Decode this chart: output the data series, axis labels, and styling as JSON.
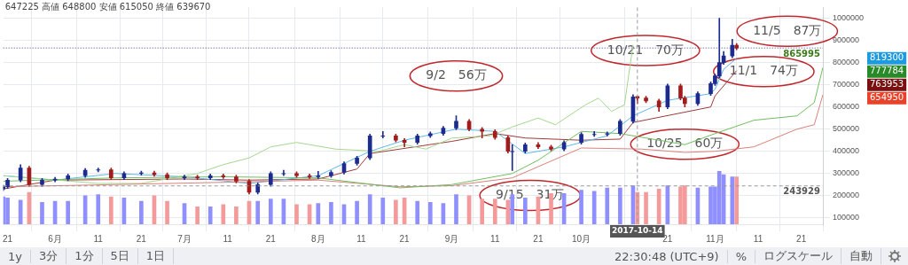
{
  "chart_data": {
    "type": "candlestick",
    "x": [
      "2017-05-20",
      "2017-05-21",
      "2017-05-24",
      "2017-05-26",
      "2017-05-29",
      "2017-06-01",
      "2017-06-04",
      "2017-06-08",
      "2017-06-11",
      "2017-06-14",
      "2017-06-17",
      "2017-06-21",
      "2017-06-24",
      "2017-06-27",
      "2017-07-01",
      "2017-07-04",
      "2017-07-07",
      "2017-07-10",
      "2017-07-13",
      "2017-07-16",
      "2017-07-18",
      "2017-07-21",
      "2017-07-24",
      "2017-07-27",
      "2017-07-30",
      "2017-08-01",
      "2017-08-04",
      "2017-08-07",
      "2017-08-10",
      "2017-08-13",
      "2017-08-16",
      "2017-08-19",
      "2017-08-21",
      "2017-08-24",
      "2017-08-27",
      "2017-08-30",
      "2017-09-02",
      "2017-09-05",
      "2017-09-08",
      "2017-09-11",
      "2017-09-14",
      "2017-09-15",
      "2017-09-18",
      "2017-09-21",
      "2017-09-24",
      "2017-09-27",
      "2017-10-01",
      "2017-10-04",
      "2017-10-07",
      "2017-10-10",
      "2017-10-13",
      "2017-10-14",
      "2017-10-16",
      "2017-10-19",
      "2017-10-21",
      "2017-10-24",
      "2017-10-25",
      "2017-10-28",
      "2017-10-31",
      "2017-11-01",
      "2017-11-02",
      "2017-11-03",
      "2017-11-05",
      "2017-11-06"
    ],
    "ohlc": [
      [
        230000,
        248000,
        222000,
        240000
      ],
      [
        240000,
        278000,
        232000,
        270000
      ],
      [
        270000,
        340000,
        262000,
        325000
      ],
      [
        325000,
        333000,
        242000,
        250000
      ],
      [
        250000,
        278000,
        242000,
        270000
      ],
      [
        270000,
        283000,
        262000,
        275000
      ],
      [
        275000,
        298000,
        267000,
        290000
      ],
      [
        290000,
        323000,
        282000,
        315000
      ],
      [
        315000,
        325000,
        307000,
        317000
      ],
      [
        317000,
        325000,
        272000,
        280000
      ],
      [
        280000,
        308000,
        272000,
        300000
      ],
      [
        300000,
        311000,
        292000,
        303000
      ],
      [
        303000,
        311000,
        287000,
        295000
      ],
      [
        295000,
        303000,
        272000,
        280000
      ],
      [
        280000,
        293000,
        272000,
        285000
      ],
      [
        285000,
        293000,
        272000,
        280000
      ],
      [
        280000,
        298000,
        272000,
        290000
      ],
      [
        290000,
        298000,
        277000,
        285000
      ],
      [
        285000,
        293000,
        257000,
        265000
      ],
      [
        265000,
        273000,
        207000,
        215000
      ],
      [
        215000,
        258000,
        207000,
        250000
      ],
      [
        250000,
        308000,
        242000,
        300000
      ],
      [
        298000,
        315000,
        290000,
        300000
      ],
      [
        300000,
        308000,
        282000,
        290000
      ],
      [
        290000,
        298000,
        277000,
        285000
      ],
      [
        285000,
        310000,
        277000,
        290000
      ],
      [
        290000,
        313000,
        282000,
        305000
      ],
      [
        305000,
        353000,
        297000,
        345000
      ],
      [
        345000,
        378000,
        337000,
        370000
      ],
      [
        370000,
        478000,
        362000,
        470000
      ],
      [
        468000,
        490000,
        460000,
        470000
      ],
      [
        470000,
        478000,
        442000,
        450000
      ],
      [
        450000,
        458000,
        420000,
        440000
      ],
      [
        440000,
        478000,
        432000,
        470000
      ],
      [
        470000,
        488000,
        462000,
        480000
      ],
      [
        480000,
        513000,
        472000,
        505000
      ],
      [
        505000,
        560000,
        497000,
        535000
      ],
      [
        535000,
        543000,
        492000,
        500000
      ],
      [
        500000,
        508000,
        460000,
        490000
      ],
      [
        490000,
        498000,
        454000,
        462000
      ],
      [
        462000,
        470000,
        392000,
        400000
      ],
      [
        398000,
        430000,
        313000,
        400000
      ],
      [
        400000,
        438000,
        392000,
        430000
      ],
      [
        430000,
        440000,
        412000,
        420000
      ],
      [
        420000,
        428000,
        402000,
        410000
      ],
      [
        410000,
        448000,
        402000,
        440000
      ],
      [
        440000,
        485000,
        432000,
        477000
      ],
      [
        475000,
        490000,
        467000,
        477000
      ],
      [
        477000,
        488000,
        469000,
        480000
      ],
      [
        480000,
        543000,
        472000,
        535000
      ],
      [
        535000,
        655000,
        527000,
        645000
      ],
      [
        647225,
        648800,
        615050,
        639670
      ],
      [
        640000,
        648000,
        619000,
        627000
      ],
      [
        627000,
        635000,
        580000,
        600000
      ],
      [
        600000,
        703000,
        592000,
        695000
      ],
      [
        695000,
        703000,
        632000,
        640000
      ],
      [
        640000,
        648000,
        600000,
        615000
      ],
      [
        615000,
        668000,
        607000,
        660000
      ],
      [
        660000,
        713000,
        652000,
        705000
      ],
      [
        705000,
        748000,
        697000,
        740000
      ],
      [
        740000,
        1000000,
        732000,
        800000
      ],
      [
        800000,
        850000,
        792000,
        830000
      ],
      [
        830000,
        905000,
        822000,
        878000
      ],
      [
        878000,
        886000,
        858000,
        865995
      ]
    ],
    "colors": [
      "#1c2b8f",
      "#1c2b8f",
      "#1c2b8f",
      "#a31c1c",
      "#1c2b8f",
      "#1c2b8f",
      "#1c2b8f",
      "#1c2b8f",
      "#1c2b8f",
      "#a31c1c",
      "#1c2b8f",
      "#1c2b8f",
      "#a31c1c",
      "#a31c1c",
      "#1c2b8f",
      "#a31c1c",
      "#1c2b8f",
      "#a31c1c",
      "#a31c1c",
      "#a31c1c",
      "#1c2b8f",
      "#1c2b8f",
      "#1c2b8f",
      "#a31c1c",
      "#a31c1c",
      "#1c2b8f",
      "#1c2b8f",
      "#1c2b8f",
      "#1c2b8f",
      "#1c2b8f",
      "#1c2b8f",
      "#a31c1c",
      "#a31c1c",
      "#1c2b8f",
      "#1c2b8f",
      "#1c2b8f",
      "#1c2b8f",
      "#a31c1c",
      "#a31c1c",
      "#a31c1c",
      "#a31c1c",
      "#1c2b8f",
      "#1c2b8f",
      "#a31c1c",
      "#a31c1c",
      "#1c2b8f",
      "#1c2b8f",
      "#1c2b8f",
      "#1c2b8f",
      "#1c2b8f",
      "#1c2b8f",
      "#a31c1c",
      "#a31c1c",
      "#a31c1c",
      "#1c2b8f",
      "#a31c1c",
      "#a31c1c",
      "#1c2b8f",
      "#1c2b8f",
      "#1c2b8f",
      "#1c2b8f",
      "#1c2b8f",
      "#1c2b8f",
      "#a31c1c"
    ],
    "series": [
      {
        "type": "bar",
        "x": [
          "2017-05-20",
          "2017-05-21",
          "2017-05-24",
          "2017-05-26",
          "2017-05-29",
          "2017-06-01",
          "2017-06-04",
          "2017-06-08",
          "2017-06-11",
          "2017-06-14",
          "2017-06-17",
          "2017-06-21",
          "2017-06-24",
          "2017-06-27",
          "2017-07-01",
          "2017-07-04",
          "2017-07-07",
          "2017-07-10",
          "2017-07-13",
          "2017-07-16",
          "2017-07-18",
          "2017-07-21",
          "2017-07-24",
          "2017-07-27",
          "2017-07-30",
          "2017-08-01",
          "2017-08-04",
          "2017-08-07",
          "2017-08-10",
          "2017-08-13",
          "2017-08-16",
          "2017-08-19",
          "2017-08-21",
          "2017-08-24",
          "2017-08-27",
          "2017-08-30",
          "2017-09-02",
          "2017-09-05",
          "2017-09-08",
          "2017-09-11",
          "2017-09-14",
          "2017-09-15",
          "2017-09-18",
          "2017-09-21",
          "2017-09-24",
          "2017-09-27",
          "2017-10-01",
          "2017-10-04",
          "2017-10-07",
          "2017-10-10",
          "2017-10-13",
          "2017-10-14",
          "2017-10-16",
          "2017-10-19",
          "2017-10-21",
          "2017-10-24",
          "2017-10-25",
          "2017-10-28",
          "2017-10-31",
          "2017-11-01",
          "2017-11-02",
          "2017-11-03",
          "2017-11-05",
          "2017-11-06"
        ],
        "values": [
          195000,
          190000,
          180000,
          215000,
          170000,
          175000,
          175000,
          200000,
          205000,
          195000,
          190000,
          175000,
          200000,
          175000,
          165000,
          150000,
          150000,
          160000,
          150000,
          175000,
          175000,
          185000,
          185000,
          160000,
          160000,
          165000,
          170000,
          160000,
          175000,
          205000,
          190000,
          180000,
          190000,
          175000,
          170000,
          165000,
          205000,
          200000,
          185000,
          185000,
          180000,
          205000,
          190000,
          195000,
          210000,
          210000,
          225000,
          220000,
          235000,
          235000,
          245000,
          215000,
          215000,
          230000,
          245000,
          240000,
          245000,
          235000,
          240000,
          240000,
          310000,
          295000,
          285000,
          285000
        ],
        "colors": [
          "#8f8fff",
          "#8f8fff",
          "#8f8fff",
          "#f59a9a",
          "#8f8fff",
          "#8f8fff",
          "#8f8fff",
          "#8f8fff",
          "#8f8fff",
          "#f59a9a",
          "#8f8fff",
          "#8f8fff",
          "#f59a9a",
          "#f59a9a",
          "#8f8fff",
          "#f59a9a",
          "#8f8fff",
          "#f59a9a",
          "#f59a9a",
          "#f59a9a",
          "#8f8fff",
          "#8f8fff",
          "#8f8fff",
          "#f59a9a",
          "#f59a9a",
          "#8f8fff",
          "#8f8fff",
          "#8f8fff",
          "#8f8fff",
          "#8f8fff",
          "#8f8fff",
          "#f59a9a",
          "#f59a9a",
          "#8f8fff",
          "#8f8fff",
          "#8f8fff",
          "#8f8fff",
          "#f59a9a",
          "#f59a9a",
          "#f59a9a",
          "#f59a9a",
          "#8f8fff",
          "#8f8fff",
          "#f59a9a",
          "#f59a9a",
          "#8f8fff",
          "#8f8fff",
          "#8f8fff",
          "#8f8fff",
          "#8f8fff",
          "#8f8fff",
          "#f59a9a",
          "#f59a9a",
          "#f59a9a",
          "#8f8fff",
          "#f59a9a",
          "#f59a9a",
          "#8f8fff",
          "#8f8fff",
          "#8f8fff",
          "#8f8fff",
          "#8f8fff",
          "#8f8fff",
          "#f59a9a"
        ]
      },
      {
        "type": "line",
        "color": "#6fbf5f",
        "x": [
          "2017-05-20",
          "2017-06-15",
          "2017-07-10",
          "2017-08-01",
          "2017-08-20",
          "2017-09-01",
          "2017-09-15",
          "2017-09-21",
          "2017-10-01",
          "2017-10-10",
          "2017-10-25",
          "2017-11-01",
          "2017-11-10",
          "2017-11-20",
          "2017-11-24",
          "2017-11-26"
        ],
        "values": [
          265000,
          280000,
          285000,
          280000,
          235000,
          250000,
          300000,
          360000,
          490000,
          480000,
          430000,
          480000,
          540000,
          560000,
          620000,
          777784
        ]
      },
      {
        "type": "line",
        "color": "#d9827a",
        "x": [
          "2017-05-20",
          "2017-06-15",
          "2017-07-10",
          "2017-08-01",
          "2017-08-20",
          "2017-09-01",
          "2017-09-15",
          "2017-10-01",
          "2017-10-15",
          "2017-10-25",
          "2017-11-01",
          "2017-11-10",
          "2017-11-20",
          "2017-11-24",
          "2017-11-26"
        ],
        "values": [
          240000,
          250000,
          260000,
          270000,
          240000,
          245000,
          280000,
          415000,
          410000,
          395000,
          400000,
          420000,
          500000,
          520000,
          654950
        ]
      },
      {
        "type": "line",
        "color": "#a6d68f",
        "x": [
          "2017-05-20",
          "2017-06-11",
          "2017-06-21",
          "2017-07-04",
          "2017-07-10",
          "2017-07-16",
          "2017-07-21",
          "2017-07-27",
          "2017-08-05",
          "2017-08-15",
          "2017-08-21",
          "2017-08-26",
          "2017-09-01",
          "2017-09-10",
          "2017-09-15",
          "2017-09-21",
          "2017-09-25",
          "2017-10-02",
          "2017-10-05",
          "2017-10-08",
          "2017-10-11",
          "2017-10-13"
        ],
        "values": [
          290000,
          255000,
          255000,
          300000,
          340000,
          370000,
          420000,
          440000,
          410000,
          400000,
          430000,
          410000,
          460000,
          470000,
          510000,
          550000,
          520000,
          610000,
          640000,
          580000,
          610000,
          880000
        ]
      },
      {
        "type": "line",
        "color": "#5fb8e8",
        "x": [
          "2017-05-20",
          "2017-06-01",
          "2017-06-15",
          "2017-07-01",
          "2017-07-16",
          "2017-08-01",
          "2017-08-13",
          "2017-08-21",
          "2017-09-02",
          "2017-09-11",
          "2017-09-18",
          "2017-09-27",
          "2017-10-07",
          "2017-10-13",
          "2017-10-21",
          "2017-10-31",
          "2017-11-01",
          "2017-11-03",
          "2017-11-06"
        ],
        "values": [
          290000,
          270000,
          300000,
          285000,
          255000,
          290000,
          400000,
          450000,
          500000,
          490000,
          390000,
          420000,
          470000,
          560000,
          630000,
          660000,
          680000,
          770000,
          819300
        ]
      },
      {
        "type": "line",
        "color": "#9e3b3b",
        "x": [
          "2017-05-20",
          "2017-06-01",
          "2017-07-01",
          "2017-07-16",
          "2017-08-01",
          "2017-08-10",
          "2017-08-13",
          "2017-09-01",
          "2017-09-11",
          "2017-09-18",
          "2017-10-01",
          "2017-10-10",
          "2017-10-13",
          "2017-10-31",
          "2017-11-01",
          "2017-11-06"
        ],
        "values": [
          230000,
          270000,
          275000,
          270000,
          275000,
          320000,
          390000,
          445000,
          480000,
          460000,
          450000,
          455000,
          530000,
          600000,
          650000,
          763953
        ]
      }
    ],
    "xlim": [
      "2017-05-20",
      "2017-11-26"
    ],
    "xticks": [
      {
        "value": "2017-05-21",
        "label": "21"
      },
      {
        "value": "2017-06-01",
        "label": "6月"
      },
      {
        "value": "2017-06-11",
        "label": "11"
      },
      {
        "value": "2017-06-21",
        "label": "21"
      },
      {
        "value": "2017-07-01",
        "label": "7月"
      },
      {
        "value": "2017-07-11",
        "label": "11"
      },
      {
        "value": "2017-07-21",
        "label": "21"
      },
      {
        "value": "2017-08-01",
        "label": "8月"
      },
      {
        "value": "2017-08-11",
        "label": "11"
      },
      {
        "value": "2017-08-21",
        "label": "21"
      },
      {
        "value": "2017-09-01",
        "label": "9月"
      },
      {
        "value": "2017-09-11",
        "label": "11"
      },
      {
        "value": "2017-09-21",
        "label": "21"
      },
      {
        "value": "2017-10-01",
        "label": "10月"
      },
      {
        "value": "2017-10-21",
        "label": "21"
      },
      {
        "value": "2017-11-01",
        "label": "11月"
      },
      {
        "value": "2017-11-11",
        "label": "11"
      },
      {
        "value": "2017-11-21",
        "label": "21"
      }
    ],
    "ylim": [
      71000,
      1049000
    ],
    "yticks": [
      100000,
      200000,
      300000,
      400000,
      500000,
      600000,
      700000,
      800000,
      900000,
      1000000
    ],
    "grid": true,
    "ref_lines": [
      {
        "axis": "y",
        "value": 865995,
        "label": "865995",
        "color": "#3c3c8c",
        "line_style": "dotted"
      },
      {
        "axis": "y",
        "value": 243929,
        "label": "243929",
        "color": "#999999",
        "line_style": "dashed"
      },
      {
        "axis": "x",
        "value": "2017-10-14",
        "label": "2017-10-14",
        "color": "#999999",
        "line_style": "dashed"
      }
    ],
    "annotations": [
      "647225 高値 648800 安値 615050 終値 639670",
      {
        "text": "9/2　56万",
        "x": "2017-09-02",
        "y": 560000
      },
      {
        "text": "9/15　31万",
        "x": "2017-09-15",
        "y": 313000
      },
      {
        "text": "10/21　70万",
        "x": "2017-10-21",
        "y": 703000
      },
      {
        "text": "10/25　60万",
        "x": "2017-10-25",
        "y": 600000
      },
      {
        "text": "11/1　74万",
        "x": "2017-11-01",
        "y": 740000
      },
      {
        "text": "11/5　87万",
        "x": "2017-11-05",
        "y": 878000
      },
      "819300",
      "777784",
      "763953",
      "654950",
      "1y",
      "3分",
      "1分",
      "5日",
      "1日",
      "22:30:48 (UTC+9)",
      "%",
      "ログスケール",
      "自動"
    ]
  }
}
